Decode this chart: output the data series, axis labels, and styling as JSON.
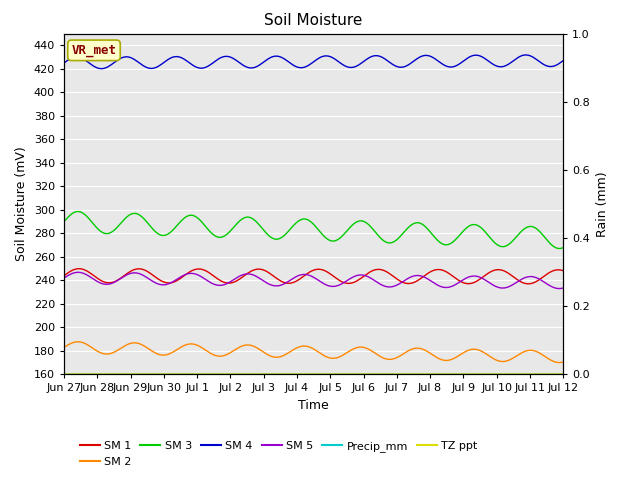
{
  "title": "Soil Moisture",
  "xlabel": "Time",
  "ylabel_left": "Soil Moisture (mV)",
  "ylabel_right": "Rain (mm)",
  "ylim_left": [
    160,
    450
  ],
  "ylim_right": [
    0.0,
    1.0
  ],
  "yticks_left": [
    160,
    180,
    200,
    220,
    240,
    260,
    280,
    300,
    320,
    340,
    360,
    380,
    400,
    420,
    440
  ],
  "yticks_right_vals": [
    0.0,
    0.2,
    0.4,
    0.6,
    0.8,
    1.0
  ],
  "bg_color": "#e8e8e8",
  "annotation_text": "VR_met",
  "annotation_color": "#880000",
  "annotation_bg": "#ffffcc",
  "annotation_edge": "#aaaa00",
  "n_points": 500,
  "sm1_base": 244,
  "sm1_amp": 6,
  "sm1_period": 1.8,
  "sm1_trend": -1,
  "sm2_base": 183,
  "sm2_amp": 5,
  "sm2_period": 1.7,
  "sm2_trend": -8,
  "sm3_base": 290,
  "sm3_amp": 9,
  "sm3_period": 1.7,
  "sm3_trend": -14,
  "sm4_base": 425,
  "sm4_amp": 5,
  "sm4_period": 1.5,
  "sm4_trend": 2,
  "sm5_base": 242,
  "sm5_amp": 5,
  "sm5_period": 1.7,
  "sm5_trend": -4,
  "tz_value": 160,
  "colors": {
    "SM 1": "#dd0000",
    "SM 2": "#ff8800",
    "SM 3": "#00cc00",
    "SM 4": "#0000cc",
    "SM 5": "#9900cc",
    "Precip_mm": "#00cccc",
    "TZ ppt": "#dddd00"
  },
  "x_tick_labels": [
    "Jun 27",
    "Jun 28",
    "Jun 29",
    "Jun 30",
    "Jul 1",
    "Jul 2",
    "Jul 3",
    "Jul 4",
    "Jul 5",
    "Jul 6",
    "Jul 7",
    "Jul 8",
    "Jul 9",
    "Jul 10",
    "Jul 11",
    "Jul 12"
  ],
  "n_ticks": 16,
  "figwidth": 6.4,
  "figheight": 4.8,
  "dpi": 100
}
